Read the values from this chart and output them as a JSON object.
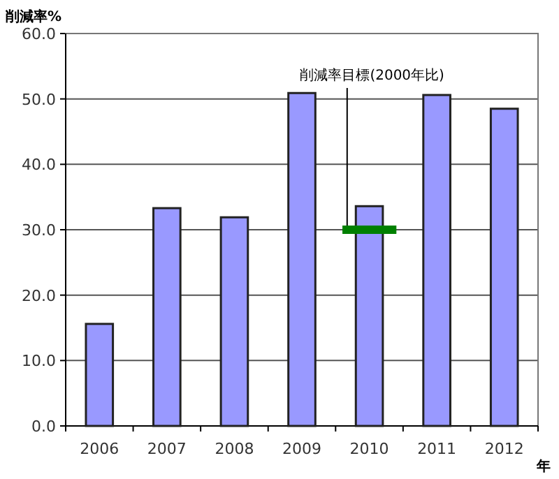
{
  "chart_data": {
    "type": "bar",
    "ylabel": "削減率%",
    "xlabel": "年",
    "categories": [
      "2006",
      "2007",
      "2008",
      "2009",
      "2010",
      "2011",
      "2012"
    ],
    "series": [
      {
        "color": "#9999ff",
        "values": [
          15.6,
          33.3,
          31.9,
          50.9,
          33.6,
          50.6,
          48.5
        ]
      }
    ],
    "ref_lines": [
      {
        "axis": "y",
        "value": 30,
        "label": "削減率目標(2000年比)",
        "color": "#008000"
      }
    ],
    "ylim": [
      0,
      60
    ],
    "yticks": [
      {
        "value": 0,
        "label": "0.0"
      },
      {
        "value": 10,
        "label": "10.0"
      },
      {
        "value": 20,
        "label": "20.0"
      },
      {
        "value": 30,
        "label": "30.0"
      },
      {
        "value": 40,
        "label": "40.0"
      },
      {
        "value": 50,
        "label": "50.0"
      },
      {
        "value": 60,
        "label": "60.0"
      }
    ],
    "grid": "y"
  }
}
